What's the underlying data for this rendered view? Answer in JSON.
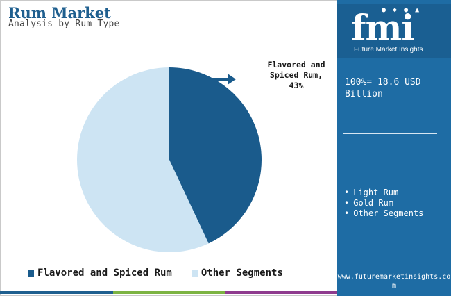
{
  "header": {
    "title": "Rum Market",
    "subtitle": "Analysis by Rum Type"
  },
  "callout": {
    "line1": "Flavored and",
    "line2": "Spiced Rum,",
    "line3": "43%"
  },
  "chart_data": {
    "type": "pie",
    "title": "Rum Market",
    "subtitle": "Analysis by Rum Type",
    "slices": [
      {
        "name": "Flavored and Spiced Rum",
        "value": 43,
        "color": "#1a5b8c"
      },
      {
        "name": "Other Segments",
        "value": 57,
        "color": "#cde4f3"
      }
    ],
    "legend_position": "bottom",
    "annotation": "Flavored and Spiced Rum, 43%"
  },
  "legend": {
    "items": [
      {
        "label": "Flavored and Spiced Rum",
        "color": "#1a5b8c"
      },
      {
        "label": "Other Segments",
        "color": "#cde4f3"
      }
    ]
  },
  "sidebar": {
    "logo_text": "fmi",
    "logo_tagline": "Future Market Insights",
    "total_line1": "100%= 18.6 USD",
    "total_line2": "Billion",
    "segments": [
      "Light Rum",
      "Gold Rum",
      "Other Segments"
    ],
    "website": "www.futuremarketinsights.com"
  },
  "colors": {
    "brand": "#1e6ca4",
    "title": "#1f5f8f",
    "footer": [
      "#1f5f8f",
      "#7cb342",
      "#8e3b8e",
      "#1e6ca4"
    ]
  }
}
